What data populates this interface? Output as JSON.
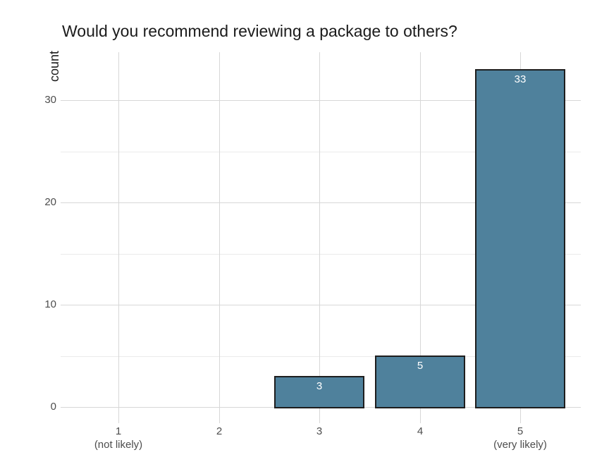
{
  "chart_data": {
    "type": "bar",
    "title": "Would you recommend reviewing a package to others?",
    "xlabel": "",
    "ylabel": "count",
    "categories": [
      "1",
      "2",
      "3",
      "4",
      "5"
    ],
    "x_tick_labels": [
      [
        "1",
        "(not likely)"
      ],
      [
        "2"
      ],
      [
        "3"
      ],
      [
        "4"
      ],
      [
        "5",
        "(very likely)"
      ]
    ],
    "values": [
      0,
      0,
      3,
      5,
      33
    ],
    "bar_value_labels": [
      "",
      "",
      "3",
      "5",
      "33"
    ],
    "y_major_ticks": [
      0,
      10,
      20,
      30
    ],
    "y_minor_ticks": [
      5,
      15,
      25
    ],
    "ylim": [
      0,
      34.65
    ],
    "grid": "on",
    "legend_position": "none",
    "colors": {
      "background": "#ffffff",
      "bar_fill": "#4f819c",
      "bar_border": "#1e1e1e",
      "bar_label_text": "#ffffff",
      "grid_major": "#d7d7d7",
      "grid_minor": "#ebebeb",
      "axis_text": "#4d4d4d",
      "title_text": "#1b1b1b"
    }
  }
}
